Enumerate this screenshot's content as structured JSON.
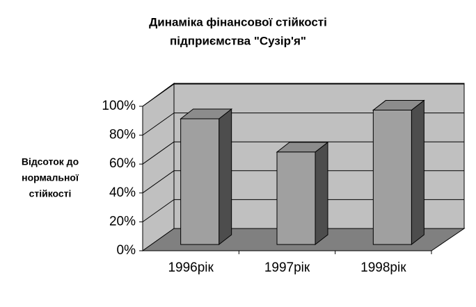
{
  "chart_data": {
    "type": "bar3d",
    "title": [
      "Динаміка фінансової стійкості",
      "підприємства \"Сузір'я\""
    ],
    "ylabel": [
      "Відсоток до",
      "нормальної",
      "стійкості"
    ],
    "categories": [
      "1996рік",
      "1997рік",
      "1998рік"
    ],
    "values": [
      87,
      64,
      93
    ],
    "color": "#a0a0a0",
    "ylim": [
      0,
      100
    ],
    "yticks": [
      {
        "value": 0,
        "label": "0%"
      },
      {
        "value": 20,
        "label": "20%"
      },
      {
        "value": 40,
        "label": "40%"
      },
      {
        "value": 60,
        "label": "60%"
      },
      {
        "value": 80,
        "label": "80%"
      },
      {
        "value": 100,
        "label": "100%"
      }
    ],
    "grid": true
  }
}
